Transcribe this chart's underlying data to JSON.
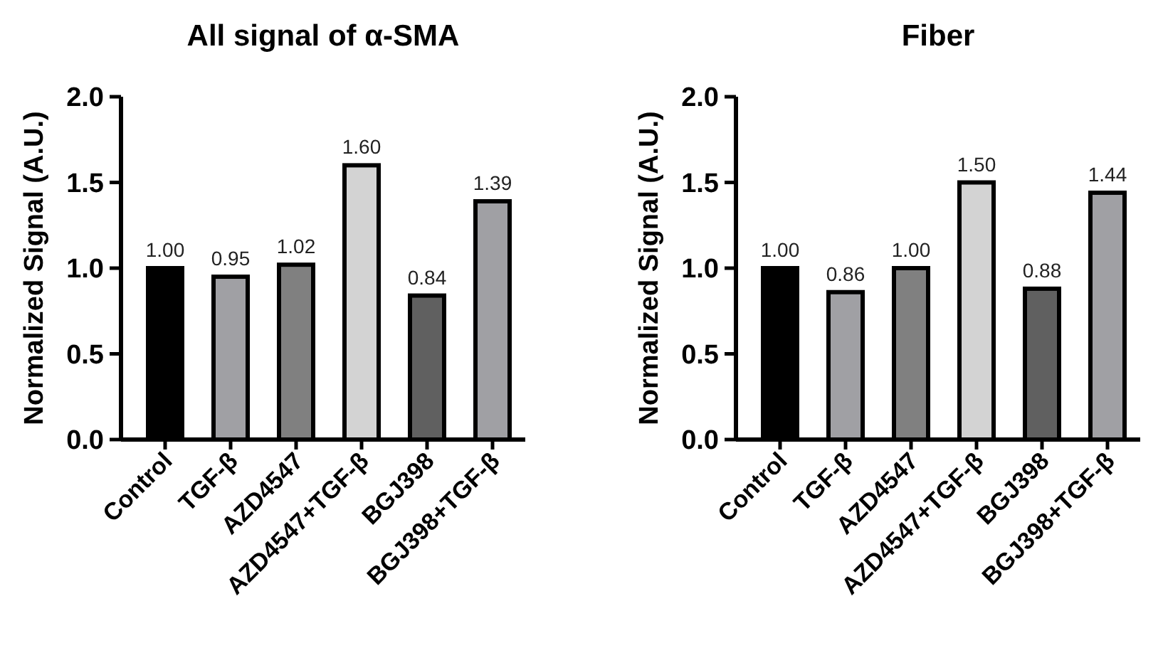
{
  "chart_data": [
    {
      "type": "bar",
      "title": "All signal of α-SMA",
      "ylabel": "Normalized Signal (A.U.)",
      "categories": [
        "Control",
        "TGF-β",
        "AZD4547",
        "AZD4547+TGF-β",
        "BGJ398",
        "BGJ398+TGF-β"
      ],
      "values": [
        1.0,
        0.95,
        1.02,
        1.6,
        0.84,
        1.39
      ],
      "value_labels": [
        "1.00",
        "0.95",
        "1.02",
        "1.60",
        "0.84",
        "1.39"
      ],
      "colors": [
        "#000000",
        "#a0a0a4",
        "#808080",
        "#d3d3d3",
        "#606060",
        "#a0a0a4"
      ],
      "ylim": [
        0,
        2
      ],
      "yticks": [
        {
          "value": 0,
          "label": "0.0"
        },
        {
          "value": 0.5,
          "label": "0.5"
        },
        {
          "value": 1,
          "label": "1.0"
        },
        {
          "value": 1.5,
          "label": "1.5"
        },
        {
          "value": 2,
          "label": "2.0"
        }
      ]
    },
    {
      "type": "bar",
      "title": "Fiber",
      "ylabel": "Normalized Signal (A.U.)",
      "categories": [
        "Control",
        "TGF-β",
        "AZD4547",
        "AZD4547+TGF-β",
        "BGJ398",
        "BGJ398+TGF-β"
      ],
      "values": [
        1.0,
        0.86,
        1.0,
        1.5,
        0.88,
        1.44
      ],
      "value_labels": [
        "1.00",
        "0.86",
        "1.00",
        "1.50",
        "0.88",
        "1.44"
      ],
      "colors": [
        "#000000",
        "#a0a0a4",
        "#808080",
        "#d3d3d3",
        "#606060",
        "#a0a0a4"
      ],
      "ylim": [
        0,
        2
      ],
      "yticks": [
        {
          "value": 0,
          "label": "0.0"
        },
        {
          "value": 0.5,
          "label": "0.5"
        },
        {
          "value": 1,
          "label": "1.0"
        },
        {
          "value": 1.5,
          "label": "1.5"
        },
        {
          "value": 2,
          "label": "2.0"
        }
      ]
    }
  ]
}
